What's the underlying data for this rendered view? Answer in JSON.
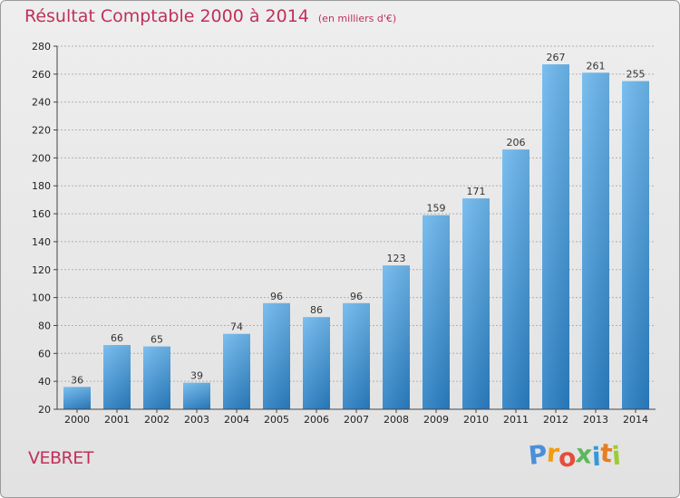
{
  "header": {
    "title": "Résultat Comptable 2000 à 2014",
    "subtitle": "(en milliers d'€)"
  },
  "commune": "VEBRET",
  "logo": {
    "text": "Proxiti",
    "letters": [
      "P",
      "r",
      "o",
      "x",
      "i",
      "t",
      "i"
    ],
    "letter_colors": [
      "#4a8fd8",
      "#f39c12",
      "#e74c3c",
      "#5cb85c",
      "#3498db",
      "#e67e22",
      "#9acd32"
    ]
  },
  "colors": {
    "title": "#c0305a",
    "bar_light": "#6db8ee",
    "bar_dark": "#2a7fc4",
    "gridline": "#b0b0b0"
  },
  "chart_data": {
    "type": "bar",
    "title": "Résultat Comptable 2000 à 2014",
    "xlabel": "",
    "ylabel": "",
    "categories": [
      "2000",
      "2001",
      "2002",
      "2003",
      "2004",
      "2005",
      "2006",
      "2007",
      "2008",
      "2009",
      "2010",
      "2011",
      "2012",
      "2013",
      "2014"
    ],
    "values": [
      36,
      66,
      65,
      39,
      74,
      96,
      86,
      96,
      123,
      159,
      171,
      206,
      267,
      261,
      255
    ],
    "ylim": [
      20,
      280
    ],
    "yticks": [
      20,
      40,
      60,
      80,
      100,
      120,
      140,
      160,
      180,
      200,
      220,
      240,
      260,
      280
    ],
    "grid": true
  }
}
